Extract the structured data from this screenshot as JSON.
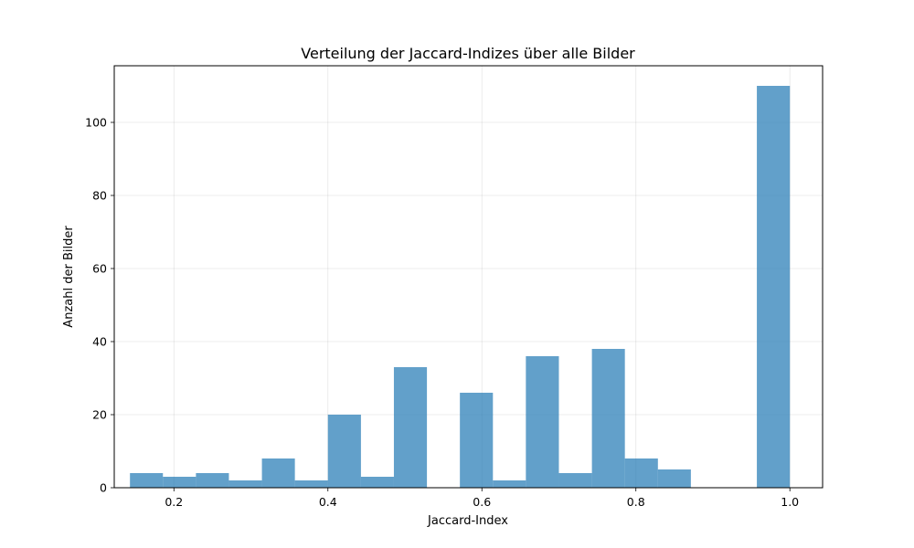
{
  "chart_data": {
    "type": "bar",
    "title": "Verteilung der Jaccard-Indizes über alle Bilder",
    "xlabel": "Jaccard-Index",
    "ylabel": "Anzahl der Bilder",
    "xlim": [
      0.1225,
      1.0425
    ],
    "ylim": [
      0,
      115.5
    ],
    "xticks": [
      0.2,
      0.4,
      0.6,
      0.8,
      1.0
    ],
    "xtick_labels": [
      "0.2",
      "0.4",
      "0.6",
      "0.8",
      "1.0"
    ],
    "yticks": [
      0,
      20,
      40,
      60,
      80,
      100
    ],
    "ytick_labels": [
      "0",
      "20",
      "40",
      "60",
      "80",
      "100"
    ],
    "grid": true,
    "color": "#1f77b4",
    "opacity": 0.7,
    "bins": [
      {
        "x0": 0.1429,
        "x1": 0.1857,
        "count": 4
      },
      {
        "x0": 0.1857,
        "x2": 0,
        "x1": 0.2286,
        "count": 3
      },
      {
        "x0": 0.2286,
        "x1": 0.2714,
        "count": 4
      },
      {
        "x0": 0.2714,
        "x1": 0.3143,
        "count": 2
      },
      {
        "x0": 0.3143,
        "x1": 0.3571,
        "count": 8
      },
      {
        "x0": 0.3571,
        "x1": 0.4,
        "count": 2
      },
      {
        "x0": 0.4,
        "x1": 0.4429,
        "count": 20
      },
      {
        "x0": 0.4429,
        "x1": 0.4857,
        "count": 3
      },
      {
        "x0": 0.4857,
        "x1": 0.5286,
        "count": 33
      },
      {
        "x0": 0.5286,
        "x1": 0.5714,
        "count": 0
      },
      {
        "x0": 0.5714,
        "x1": 0.6143,
        "count": 26
      },
      {
        "x0": 0.6143,
        "x1": 0.6571,
        "count": 2
      },
      {
        "x0": 0.6571,
        "x1": 0.7,
        "count": 36
      },
      {
        "x0": 0.7,
        "x1": 0.7429,
        "count": 4
      },
      {
        "x0": 0.7429,
        "x1": 0.7857,
        "count": 38
      },
      {
        "x0": 0.7857,
        "x1": 0.8286,
        "count": 8
      },
      {
        "x0": 0.8286,
        "x1": 0.8714,
        "count": 5
      },
      {
        "x0": 0.8714,
        "x1": 0.9143,
        "count": 0
      },
      {
        "x0": 0.9143,
        "x1": 0.9571,
        "count": 0
      },
      {
        "x0": 0.9571,
        "x1": 1.0,
        "count": 110
      }
    ]
  }
}
